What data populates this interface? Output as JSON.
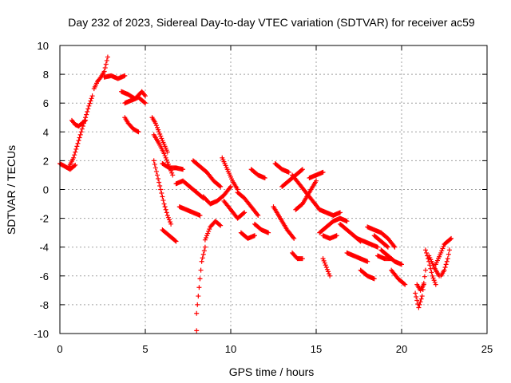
{
  "chart_data": {
    "type": "scatter",
    "title": "Day 232 of 2023, Sidereal Day-to-day VTEC variation (SDTVAR) for receiver ac59",
    "xlabel": "GPS time / hours",
    "ylabel": "SDTVAR / TECUs",
    "xlim": [
      0,
      25
    ],
    "ylim": [
      -10,
      10
    ],
    "xticks": [
      0,
      5,
      10,
      15,
      20,
      25
    ],
    "yticks": [
      -10,
      -8,
      -6,
      -4,
      -2,
      0,
      2,
      4,
      6,
      8,
      10
    ],
    "grid": true,
    "marker": "+",
    "color": "#ff0000",
    "segments": [
      {
        "x": [
          0.0,
          0.3,
          0.6,
          0.9
        ],
        "y": [
          1.8,
          1.6,
          1.4,
          1.7
        ]
      },
      {
        "x": [
          0.5,
          0.8,
          1.1,
          1.4,
          1.7,
          1.9
        ],
        "y": [
          1.5,
          2.2,
          3.4,
          4.6,
          5.8,
          6.5
        ]
      },
      {
        "x": [
          0.7,
          0.9,
          1.1,
          1.3,
          1.5
        ],
        "y": [
          4.8,
          4.5,
          4.4,
          4.6,
          4.8
        ]
      },
      {
        "x": [
          2.0,
          2.2,
          2.4,
          2.6,
          2.8
        ],
        "y": [
          7.0,
          7.5,
          7.8,
          8.2,
          9.2
        ]
      },
      {
        "x": [
          2.6,
          3.0,
          3.4,
          3.8
        ],
        "y": [
          7.8,
          7.9,
          7.7,
          7.9
        ]
      },
      {
        "x": [
          3.6,
          4.0,
          4.4,
          4.8,
          5.0
        ],
        "y": [
          6.8,
          6.6,
          6.3,
          6.8,
          6.5
        ]
      },
      {
        "x": [
          3.8,
          4.2,
          4.6,
          5.0
        ],
        "y": [
          6.0,
          6.2,
          6.4,
          6.0
        ]
      },
      {
        "x": [
          3.8,
          4.0,
          4.3,
          4.6
        ],
        "y": [
          5.0,
          4.6,
          4.2,
          4.0
        ]
      },
      {
        "x": [
          5.4,
          5.6,
          5.8,
          6.0,
          6.3
        ],
        "y": [
          5.0,
          4.6,
          4.0,
          3.4,
          2.6
        ]
      },
      {
        "x": [
          5.5,
          5.8,
          6.1,
          6.4,
          6.6
        ],
        "y": [
          3.8,
          3.2,
          2.5,
          1.6,
          1.0
        ]
      },
      {
        "x": [
          5.5,
          5.7,
          5.9,
          6.1,
          6.3,
          6.5
        ],
        "y": [
          2.0,
          1.0,
          0.0,
          -1.0,
          -1.8,
          -2.4
        ]
      },
      {
        "x": [
          6.0,
          6.4,
          6.8,
          7.2
        ],
        "y": [
          1.8,
          1.5,
          1.5,
          1.4
        ]
      },
      {
        "x": [
          6.0,
          6.4,
          6.8
        ],
        "y": [
          -2.8,
          -3.2,
          -3.6
        ]
      },
      {
        "x": [
          6.8,
          7.2,
          7.6,
          8.0,
          8.4
        ],
        "y": [
          0.4,
          0.6,
          0.2,
          -0.2,
          -0.6
        ]
      },
      {
        "x": [
          7.0,
          7.4,
          7.8,
          8.2
        ],
        "y": [
          -1.2,
          -1.4,
          -1.6,
          -1.8
        ]
      },
      {
        "x": [
          7.8,
          8.2,
          8.6,
          9.0,
          9.4
        ],
        "y": [
          2.0,
          1.6,
          1.2,
          0.6,
          0.2
        ]
      },
      {
        "x": [
          8.0,
          8.0,
          8.1,
          8.2,
          8.3,
          8.5
        ],
        "y": [
          -9.8,
          -8.6,
          -7.4,
          -6.2,
          -5.0,
          -4.0
        ]
      },
      {
        "x": [
          8.5,
          8.8,
          9.1,
          9.4
        ],
        "y": [
          -3.5,
          -2.6,
          -2.2,
          -2.5
        ]
      },
      {
        "x": [
          8.4,
          8.8,
          9.2,
          9.6,
          10.0
        ],
        "y": [
          -0.5,
          -1.0,
          -0.8,
          -0.4,
          0.2
        ]
      },
      {
        "x": [
          9.5,
          9.8,
          10.1,
          10.4
        ],
        "y": [
          2.2,
          1.4,
          0.6,
          0.0
        ]
      },
      {
        "x": [
          9.6,
          10.0,
          10.4,
          10.8
        ],
        "y": [
          -0.8,
          -1.4,
          -2.0,
          -1.6
        ]
      },
      {
        "x": [
          10.4,
          10.8,
          11.2,
          11.6
        ],
        "y": [
          -0.2,
          -0.6,
          -1.2,
          -1.8
        ]
      },
      {
        "x": [
          10.6,
          11.0,
          11.4
        ],
        "y": [
          -3.0,
          -3.4,
          -3.2
        ]
      },
      {
        "x": [
          11.2,
          11.6,
          12.0
        ],
        "y": [
          1.4,
          1.0,
          0.8
        ]
      },
      {
        "x": [
          11.4,
          11.8,
          12.2
        ],
        "y": [
          -2.4,
          -2.8,
          -3.0
        ]
      },
      {
        "x": [
          12.5,
          12.9,
          13.3,
          13.7
        ],
        "y": [
          -1.2,
          -2.0,
          -2.8,
          -3.4
        ]
      },
      {
        "x": [
          12.6,
          13.0,
          13.4
        ],
        "y": [
          1.8,
          1.4,
          1.2
        ]
      },
      {
        "x": [
          13.0,
          13.4,
          13.8,
          14.2
        ],
        "y": [
          0.2,
          0.6,
          1.0,
          1.4
        ]
      },
      {
        "x": [
          13.6,
          14.0,
          14.4,
          14.8,
          15.2
        ],
        "y": [
          1.0,
          0.4,
          -0.2,
          -0.8,
          -1.4
        ]
      },
      {
        "x": [
          13.8,
          14.2,
          14.6,
          15.0
        ],
        "y": [
          -1.4,
          -1.0,
          -0.2,
          0.6
        ]
      },
      {
        "x": [
          14.6,
          15.0,
          15.4
        ],
        "y": [
          0.8,
          1.0,
          1.2
        ]
      },
      {
        "x": [
          13.6,
          13.9,
          14.2
        ],
        "y": [
          -4.4,
          -4.8,
          -4.8
        ]
      },
      {
        "x": [
          15.2,
          15.6,
          16.0,
          16.4
        ],
        "y": [
          -1.4,
          -1.6,
          -1.8,
          -1.6
        ]
      },
      {
        "x": [
          15.2,
          15.6,
          16.0,
          16.4,
          16.8
        ],
        "y": [
          -3.0,
          -2.6,
          -2.2,
          -2.0,
          -2.2
        ]
      },
      {
        "x": [
          15.4,
          15.8,
          16.2
        ],
        "y": [
          -3.2,
          -3.4,
          -3.2
        ]
      },
      {
        "x": [
          15.4,
          15.6,
          15.8
        ],
        "y": [
          -4.8,
          -5.4,
          -6.0
        ]
      },
      {
        "x": [
          16.4,
          16.8,
          17.2,
          17.6
        ],
        "y": [
          -2.4,
          -2.8,
          -3.2,
          -3.6
        ]
      },
      {
        "x": [
          16.8,
          17.2,
          17.6,
          18.0
        ],
        "y": [
          -4.4,
          -4.6,
          -4.8,
          -5.0
        ]
      },
      {
        "x": [
          17.4,
          17.8,
          18.2,
          18.6
        ],
        "y": [
          -3.4,
          -3.6,
          -3.8,
          -4.0
        ]
      },
      {
        "x": [
          17.6,
          18.0,
          18.4
        ],
        "y": [
          -5.6,
          -6.0,
          -6.2
        ]
      },
      {
        "x": [
          18.0,
          18.4,
          18.8,
          19.2,
          19.6
        ],
        "y": [
          -2.6,
          -2.8,
          -3.0,
          -3.4,
          -4.0
        ]
      },
      {
        "x": [
          18.4,
          18.8,
          19.2
        ],
        "y": [
          -3.2,
          -3.6,
          -4.0
        ]
      },
      {
        "x": [
          18.8,
          19.2,
          19.6,
          20.0
        ],
        "y": [
          -4.2,
          -4.6,
          -5.0,
          -5.2
        ]
      },
      {
        "x": [
          18.6,
          19.0,
          19.4
        ],
        "y": [
          -4.6,
          -4.8,
          -4.8
        ]
      },
      {
        "x": [
          19.4,
          19.8,
          20.2
        ],
        "y": [
          -5.6,
          -6.2,
          -6.6
        ]
      },
      {
        "x": [
          20.8,
          21.0,
          21.2,
          21.4
        ],
        "y": [
          -7.2,
          -8.2,
          -7.4,
          -5.6
        ]
      },
      {
        "x": [
          20.9,
          21.1,
          21.3
        ],
        "y": [
          -6.6,
          -7.0,
          -6.6
        ]
      },
      {
        "x": [
          21.4,
          21.6,
          21.8,
          22.0
        ],
        "y": [
          -4.2,
          -5.0,
          -6.0,
          -6.6
        ]
      },
      {
        "x": [
          21.6,
          21.9,
          22.2
        ],
        "y": [
          -4.6,
          -5.4,
          -6.0
        ]
      },
      {
        "x": [
          22.0,
          22.3,
          22.5,
          22.7,
          22.9
        ],
        "y": [
          -5.2,
          -4.4,
          -3.8,
          -3.6,
          -3.4
        ]
      },
      {
        "x": [
          22.3,
          22.5,
          22.7,
          22.8
        ],
        "y": [
          -6.0,
          -5.6,
          -4.8,
          -4.2
        ]
      }
    ]
  }
}
